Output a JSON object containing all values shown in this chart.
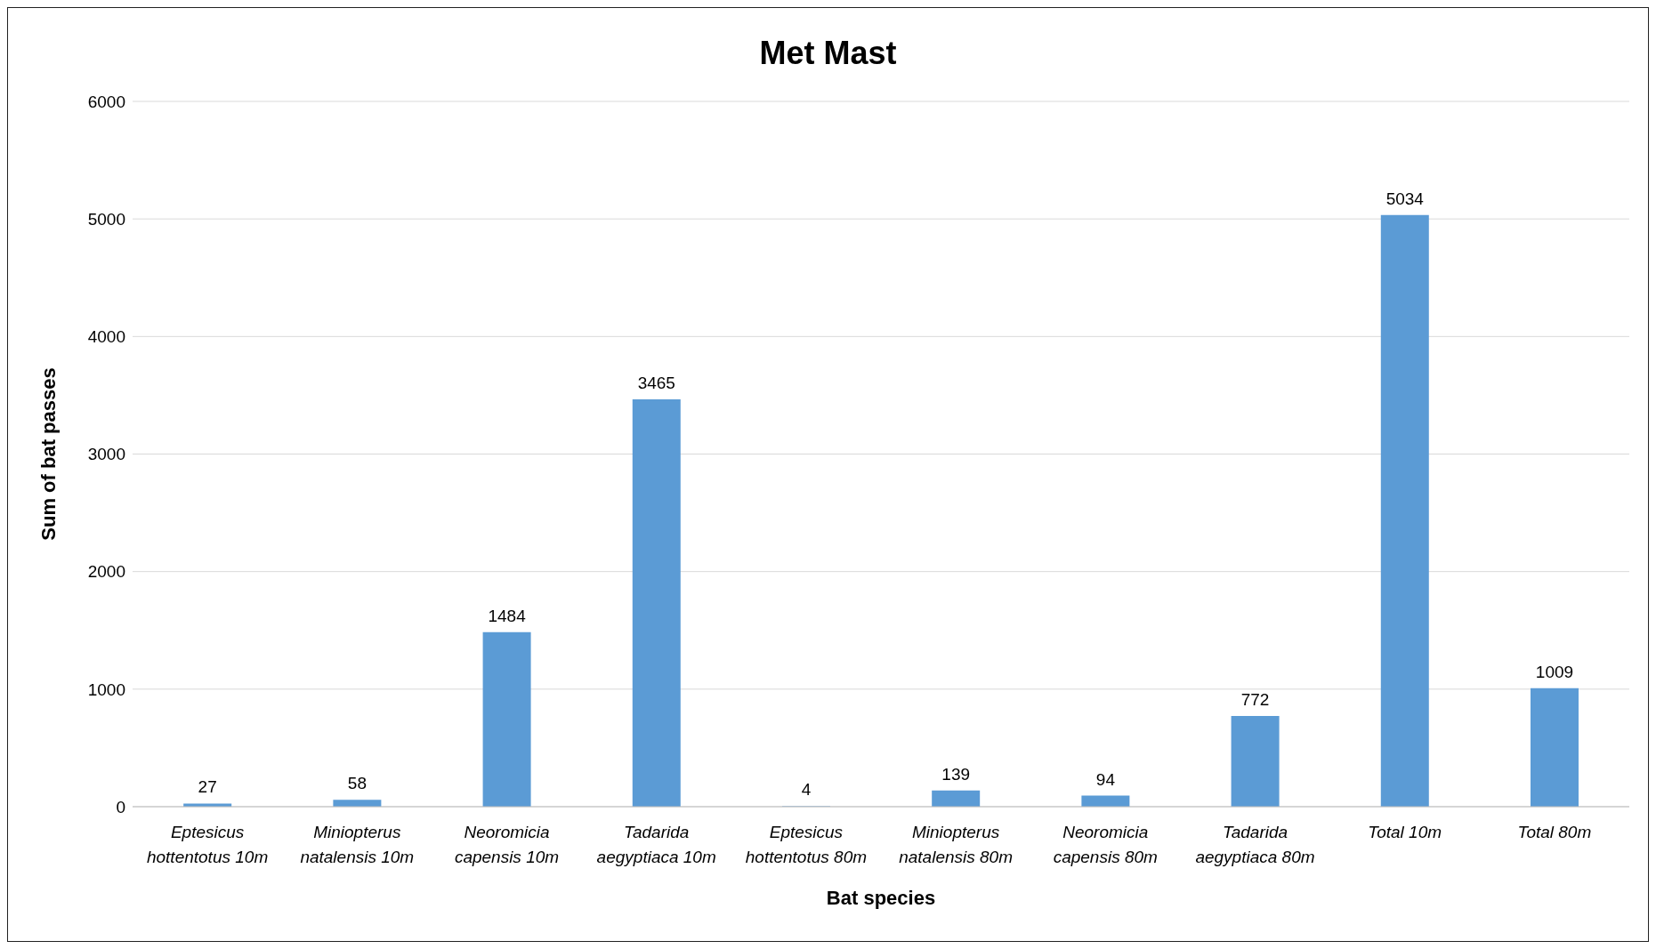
{
  "chart_data": {
    "type": "bar",
    "title": "Met Mast",
    "xlabel": "Bat species",
    "ylabel": "Sum of bat passes",
    "categories": [
      "Eptesicus hottentotus 10m",
      "Miniopterus natalensis 10m",
      "Neoromicia capensis 10m",
      "Tadarida aegyptiaca 10m",
      "Eptesicus hottentotus 80m",
      "Miniopterus natalensis 80m",
      "Neoromicia capensis 80m",
      "Tadarida aegyptiaca 80m",
      "Total 10m",
      "Total 80m"
    ],
    "values": [
      27,
      58,
      1484,
      3465,
      4,
      139,
      94,
      772,
      5034,
      1009
    ],
    "color": "#5b9bd5",
    "ylim": [
      0,
      6000
    ],
    "yticks": [
      0,
      1000,
      2000,
      3000,
      4000,
      5000,
      6000
    ],
    "grid": "y",
    "data_labels": true
  }
}
